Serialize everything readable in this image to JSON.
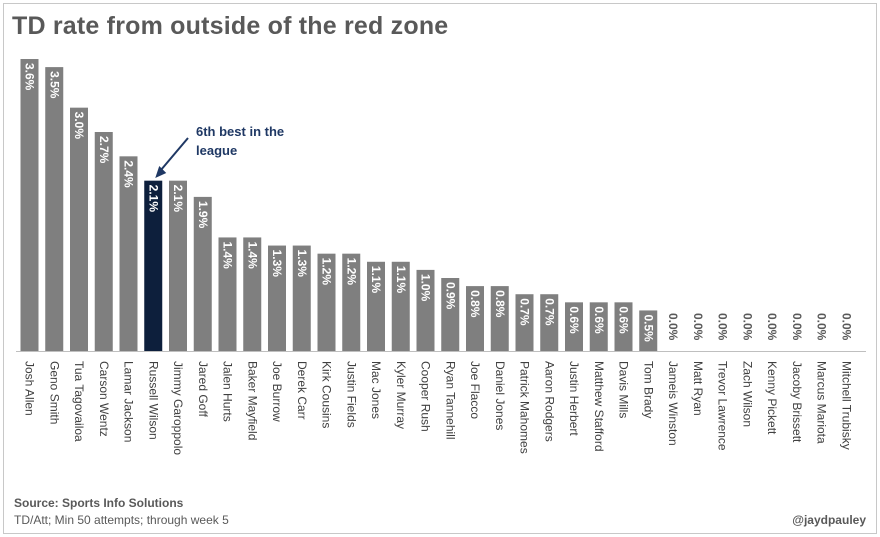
{
  "chart_data": {
    "type": "bar",
    "title": "TD rate from outside of the red zone",
    "categories": [
      "Josh Allen",
      "Geno Smith",
      "Tua Tagovailoa",
      "Carson Wentz",
      "Lamar Jackson",
      "Russell Wilson",
      "Jimmy Garoppolo",
      "Jared Goff",
      "Jalen Hurts",
      "Baker Mayfield",
      "Joe Burrow",
      "Derek Carr",
      "Kirk Cousins",
      "Justin Fields",
      "Mac Jones",
      "Kyler Murray",
      "Cooper Rush",
      "Ryan Tannehill",
      "Joe Flacco",
      "Daniel Jones",
      "Patrick Mahomes",
      "Aaron Rodgers",
      "Justin Herbert",
      "Matthew Stafford",
      "Davis Mills",
      "Tom Brady",
      "Jameis Winston",
      "Matt Ryan",
      "Trevor Lawrence",
      "Zach Wilson",
      "Kenny Pickett",
      "Jacoby Brissett",
      "Marcus Mariota",
      "Mitchell Trubisky"
    ],
    "values": [
      3.6,
      3.5,
      3.0,
      2.7,
      2.4,
      2.1,
      2.1,
      1.9,
      1.4,
      1.4,
      1.3,
      1.3,
      1.2,
      1.2,
      1.1,
      1.1,
      1.0,
      0.9,
      0.8,
      0.8,
      0.7,
      0.7,
      0.6,
      0.6,
      0.6,
      0.5,
      0.0,
      0.0,
      0.0,
      0.0,
      0.0,
      0.0,
      0.0,
      0.0
    ],
    "labels": [
      "3.6%",
      "3.5%",
      "3.0%",
      "2.7%",
      "2.4%",
      "2.1%",
      "2.1%",
      "1.9%",
      "1.4%",
      "1.4%",
      "1.3%",
      "1.3%",
      "1.2%",
      "1.2%",
      "1.1%",
      "1.1%",
      "1.0%",
      "0.9%",
      "0.8%",
      "0.8%",
      "0.7%",
      "0.7%",
      "0.6%",
      "0.6%",
      "0.6%",
      "0.5%",
      "0.0%",
      "0.0%",
      "0.0%",
      "0.0%",
      "0.0%",
      "0.0%",
      "0.0%",
      "0.0%"
    ],
    "highlight_index": 5,
    "colors": {
      "bar": "#7f7f7f",
      "highlight": "#0d1f3c",
      "label_on_bar": "#ffffff",
      "label_zero": "#595959",
      "axis": "#bfbfbf",
      "annotation": "#1f3864"
    },
    "annotation": {
      "text_line1": "6th best in the",
      "text_line2": "league"
    },
    "grid": false,
    "legend": "none",
    "ylim": [
      0,
      3.6
    ]
  },
  "footer": {
    "source": "Source: Sports Info Solutions",
    "note": "TD/Att; Min 50 attempts; through week 5",
    "handle": "@jaydpauley"
  }
}
